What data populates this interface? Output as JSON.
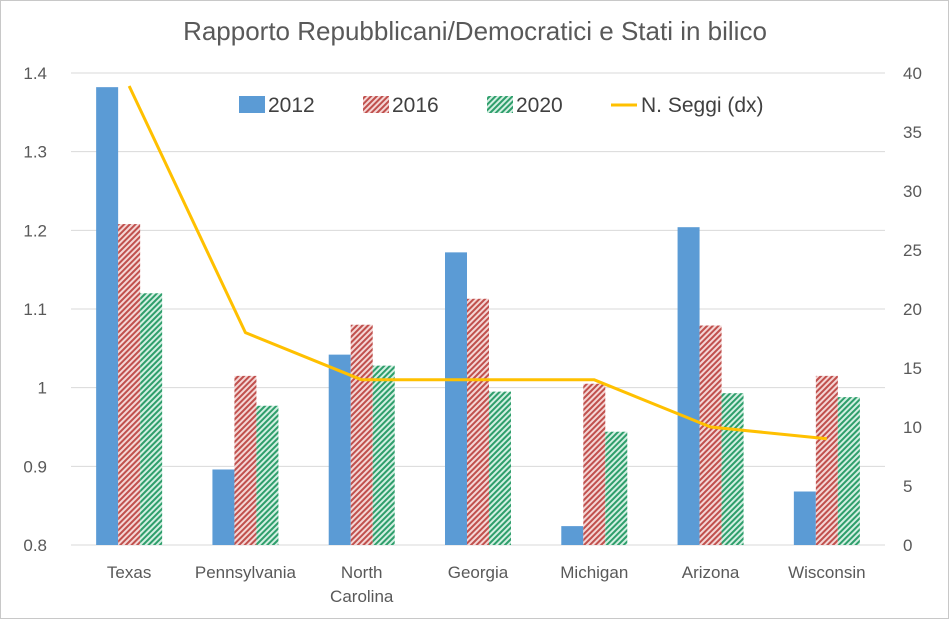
{
  "chart_data": {
    "type": "bar",
    "title": "Rapporto Repubblicani/Democratici e Stati in bilico",
    "categories": [
      [
        "Texas"
      ],
      [
        "Pennsylvania"
      ],
      [
        "North",
        "Carolina"
      ],
      [
        "Georgia"
      ],
      [
        "Michigan"
      ],
      [
        "Arizona"
      ],
      [
        "Wisconsin"
      ]
    ],
    "series": [
      {
        "name": "2012",
        "kind": "bar",
        "axis": "left",
        "color": "#5b9bd5",
        "fill": "solid",
        "values": [
          1.382,
          0.896,
          1.042,
          1.172,
          0.824,
          1.204,
          0.868
        ]
      },
      {
        "name": "2016",
        "kind": "bar",
        "axis": "left",
        "color": "#c0504d",
        "fill": "hatched",
        "values": [
          1.208,
          1.015,
          1.08,
          1.113,
          1.005,
          1.079,
          1.015
        ]
      },
      {
        "name": "2020",
        "kind": "bar",
        "axis": "left",
        "color": "#2e9e6b",
        "fill": "hatched",
        "values": [
          1.12,
          0.977,
          1.028,
          0.995,
          0.944,
          0.993,
          0.988
        ]
      },
      {
        "name": "N. Seggi (dx)",
        "kind": "line",
        "axis": "right",
        "color": "#ffc000",
        "values": [
          38.9,
          18,
          14,
          14,
          14,
          10,
          9
        ]
      }
    ],
    "y_left": {
      "min": 0.8,
      "max": 1.4,
      "ticks": [
        "0.8",
        "0.9",
        "1",
        "1.1",
        "1.2",
        "1.3",
        "1.4"
      ]
    },
    "y_right": {
      "min": 0,
      "max": 40,
      "ticks": [
        "0",
        "5",
        "10",
        "15",
        "20",
        "25",
        "30",
        "35",
        "40"
      ]
    },
    "grid": true,
    "legend_position": "top-center"
  }
}
